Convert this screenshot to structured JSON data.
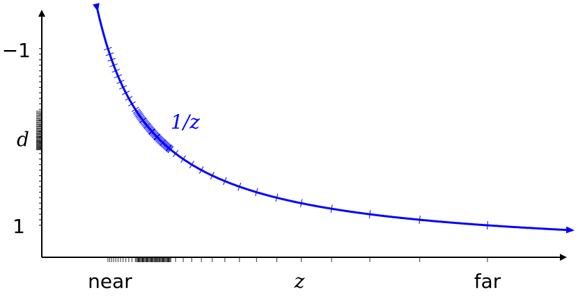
{
  "diagram": {
    "y_axis": {
      "label": "d",
      "tick_labels": [
        "−1",
        "1"
      ]
    },
    "x_axis": {
      "label": "z",
      "left_label": "near",
      "right_label": "far"
    },
    "curve": {
      "label": "1/z"
    },
    "colors": {
      "curve": "#0000ff",
      "axes": "#000000",
      "ticks": "#333333"
    }
  }
}
